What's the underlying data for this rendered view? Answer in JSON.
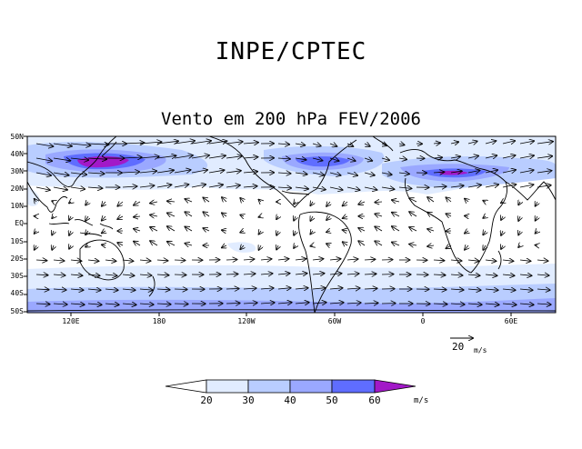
{
  "header": {
    "title": "INPE/CPTEC"
  },
  "map": {
    "title": "Vento em 200 hPa FEV/2006",
    "lat_labels": [
      "50N",
      "40N",
      "30N",
      "20N",
      "10N",
      "EQ",
      "10S",
      "20S",
      "30S",
      "40S",
      "50S"
    ],
    "lon_labels": [
      "120E",
      "180",
      "120W",
      "60W",
      "0",
      "60E"
    ]
  },
  "reference_vector": {
    "value": "20",
    "unit": "m/s"
  },
  "colorbar": {
    "levels": [
      "20",
      "30",
      "40",
      "50",
      "60"
    ],
    "unit": "m/s",
    "colors": [
      "#ffffff",
      "#e1ecff",
      "#b9cdff",
      "#9aa8ff",
      "#5f6dff",
      "#a219c8"
    ]
  }
}
